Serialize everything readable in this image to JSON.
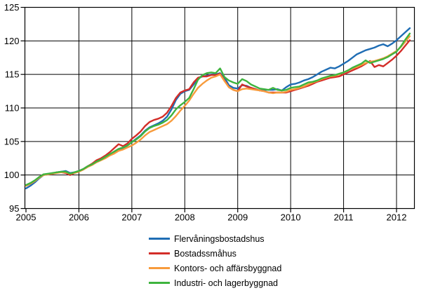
{
  "chart_data": {
    "type": "line",
    "title": "",
    "xlabel": "",
    "ylabel": "",
    "x_start": "2005-01",
    "x_end": "2012-04",
    "frequency": "monthly",
    "ylim": [
      95,
      125
    ],
    "y_ticks": [
      "95",
      "100",
      "105",
      "110",
      "115",
      "120",
      "125"
    ],
    "x_tick_labels": [
      "2005",
      "2006",
      "2007",
      "2008",
      "2009",
      "2010",
      "2011",
      "2012"
    ],
    "grid": true,
    "legend_position": "bottom",
    "axis_color": "#000000",
    "grid_color": "#000000",
    "series": [
      {
        "name": "Flervåningsbostadshus",
        "color": "#1f6db4",
        "values": [
          98.0,
          98.4,
          98.9,
          99.5,
          100.0,
          100.1,
          100.2,
          100.4,
          100.5,
          100.6,
          100.3,
          100.4,
          100.6,
          100.9,
          101.3,
          101.6,
          102.0,
          102.3,
          102.6,
          103.0,
          103.4,
          103.8,
          104.0,
          104.4,
          104.9,
          105.4,
          105.9,
          106.6,
          107.1,
          107.4,
          107.7,
          108.1,
          108.7,
          109.8,
          111.2,
          112.1,
          112.5,
          112.7,
          113.5,
          114.4,
          114.7,
          114.8,
          115.0,
          115.0,
          115.2,
          114.5,
          113.4,
          113.0,
          112.9,
          113.4,
          113.3,
          113.0,
          112.8,
          112.6,
          112.7,
          112.7,
          112.7,
          112.8,
          112.6,
          113.1,
          113.5,
          113.6,
          113.8,
          114.1,
          114.3,
          114.6,
          115.0,
          115.4,
          115.7,
          116.0,
          115.9,
          116.2,
          116.6,
          117.0,
          117.5,
          118.0,
          118.3,
          118.6,
          118.8,
          119.0,
          119.3,
          119.5,
          119.2,
          119.6,
          120.1,
          120.7,
          121.3,
          121.9
        ]
      },
      {
        "name": "Bostadssmåhus",
        "color": "#d32d28",
        "values": [
          98.4,
          98.7,
          99.1,
          99.7,
          100.1,
          100.1,
          100.2,
          100.4,
          100.4,
          100.3,
          100.0,
          100.3,
          100.5,
          100.9,
          101.3,
          101.7,
          102.2,
          102.5,
          102.9,
          103.4,
          104.0,
          104.6,
          104.3,
          104.7,
          105.4,
          105.9,
          106.5,
          107.3,
          107.9,
          108.2,
          108.4,
          108.7,
          109.3,
          110.3,
          111.5,
          112.3,
          112.6,
          112.8,
          113.8,
          114.5,
          114.7,
          114.7,
          114.9,
          114.9,
          115.1,
          114.1,
          113.1,
          112.7,
          112.5,
          113.5,
          113.2,
          113.0,
          112.8,
          112.6,
          112.5,
          112.3,
          112.3,
          112.3,
          112.3,
          112.3,
          112.5,
          112.7,
          112.9,
          113.1,
          113.3,
          113.6,
          113.9,
          114.1,
          114.3,
          114.5,
          114.6,
          114.7,
          115.0,
          115.3,
          115.6,
          115.9,
          116.2,
          116.6,
          117.0,
          116.1,
          116.4,
          116.2,
          116.7,
          117.2,
          117.8,
          118.5,
          119.3,
          120.1
        ]
      },
      {
        "name": "Kontors- och affärsbyggnad",
        "color": "#f79b3c",
        "values": [
          98.4,
          98.7,
          99.1,
          99.6,
          100.0,
          100.1,
          100.2,
          100.3,
          100.4,
          100.4,
          100.2,
          100.3,
          100.5,
          100.8,
          101.2,
          101.5,
          101.9,
          102.2,
          102.5,
          102.9,
          103.2,
          103.6,
          103.8,
          104.1,
          104.4,
          104.8,
          105.3,
          105.9,
          106.4,
          106.7,
          107.0,
          107.3,
          107.6,
          108.1,
          108.8,
          109.6,
          110.3,
          111.1,
          112.1,
          113.0,
          113.6,
          114.1,
          114.5,
          114.7,
          115.0,
          114.0,
          113.1,
          112.7,
          112.5,
          112.8,
          112.9,
          112.8,
          112.7,
          112.6,
          112.5,
          112.3,
          112.2,
          112.3,
          112.3,
          112.4,
          112.7,
          112.8,
          113.0,
          113.2,
          113.5,
          113.8,
          114.0,
          114.3,
          114.5,
          114.7,
          114.8,
          115.0,
          115.3,
          115.6,
          115.9,
          116.1,
          116.4,
          116.7,
          116.9,
          117.0,
          117.2,
          117.4,
          117.7,
          118.1,
          118.5,
          119.1,
          119.9,
          120.7
        ]
      },
      {
        "name": "Industri- och lagerbyggnad",
        "color": "#3eb43e",
        "values": [
          98.5,
          98.8,
          99.2,
          99.7,
          100.1,
          100.2,
          100.3,
          100.4,
          100.5,
          100.5,
          100.2,
          100.4,
          100.6,
          100.9,
          101.3,
          101.6,
          102.0,
          102.3,
          102.7,
          103.1,
          103.5,
          103.9,
          104.1,
          104.4,
          104.9,
          105.3,
          105.8,
          106.5,
          107.0,
          107.3,
          107.5,
          107.8,
          108.2,
          108.9,
          109.8,
          110.4,
          110.9,
          111.5,
          112.8,
          114.2,
          114.9,
          115.2,
          115.3,
          115.2,
          115.9,
          114.6,
          114.1,
          113.8,
          113.6,
          114.3,
          114.0,
          113.5,
          113.2,
          112.9,
          112.8,
          112.7,
          113.0,
          112.7,
          112.6,
          112.7,
          113.0,
          113.1,
          113.2,
          113.5,
          113.8,
          113.9,
          114.1,
          114.4,
          114.6,
          114.8,
          114.9,
          115.1,
          115.3,
          115.6,
          116.0,
          116.3,
          116.6,
          117.1,
          116.7,
          116.9,
          117.1,
          117.3,
          117.6,
          118.0,
          118.4,
          119.2,
          120.2,
          121.1
        ]
      }
    ]
  }
}
